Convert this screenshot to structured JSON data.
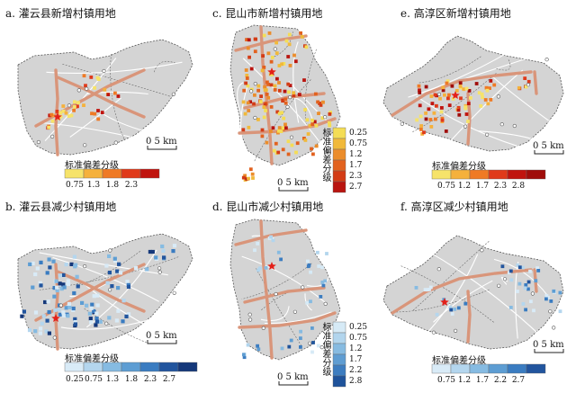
{
  "panels": {
    "a": {
      "title": "a. 灌云县新增村镇用地",
      "scale": "0  5 km",
      "legend_title": "标准偏差分级",
      "ticks": [
        "0.75",
        "1.3",
        "1.8",
        "2.3"
      ],
      "colors": [
        "#f6e36a",
        "#f5b13c",
        "#ef7a25",
        "#e03a1a",
        "#c0140e"
      ]
    },
    "b": {
      "title": "b. 灌云县减少村镇用地",
      "scale": "0  5 km",
      "legend_title": "标准偏差分级",
      "ticks": [
        "0.25",
        "0.75",
        "1.3",
        "1.8",
        "2.3",
        "2.7"
      ],
      "colors": [
        "#d9ebf7",
        "#b4d6ee",
        "#86bbe2",
        "#5d9dd3",
        "#3a7cc1",
        "#22559e",
        "#15387a"
      ]
    },
    "c": {
      "title": "c. 昆山市新增村镇用地",
      "scale": "0  5 km",
      "legend_title": "标准偏差分级",
      "ticks": [
        "0.25",
        "0.75",
        "1.2",
        "1.7",
        "2.3",
        "2.7"
      ],
      "colors": [
        "#f4dd55",
        "#f1b93a",
        "#eb8d2b",
        "#e2621f",
        "#d33c16",
        "#b91510"
      ]
    },
    "d": {
      "title": "d. 昆山市减少村镇用地",
      "scale": "0  5 km",
      "legend_title": "标准偏差分级",
      "ticks": [
        "0.25",
        "0.75",
        "1.2",
        "1.7",
        "2.2",
        "2.8"
      ],
      "colors": [
        "#d6eaf6",
        "#b2d5ed",
        "#87bbe1",
        "#5f9dd2",
        "#3d7dc0",
        "#1f539b"
      ]
    },
    "e": {
      "title": "e. 高淳区新增村镇用地",
      "scale": "0  5 km",
      "legend_title": "标准偏差分级",
      "ticks": [
        "0.75",
        "1.2",
        "1.7",
        "2.3",
        "2.8"
      ],
      "colors": [
        "#f6e36a",
        "#f5b13c",
        "#ef7a25",
        "#e03a1a",
        "#c0140e",
        "#a00d0a"
      ]
    },
    "f": {
      "title": "f. 高淳区减少村镇用地",
      "scale": "0  5 km",
      "legend_title": "标准偏差分级",
      "ticks": [
        "0.75",
        "1.2",
        "1.7",
        "2.2",
        "2.7"
      ],
      "colors": [
        "#d9ebf7",
        "#b4d6ee",
        "#86bbe2",
        "#5d9dd3",
        "#3a7cc1",
        "#22559e"
      ]
    }
  },
  "map_colors": {
    "land": "#d4d4d4",
    "road_major": "#d9957a",
    "road_minor": "#ffffff",
    "boundary": "#555555",
    "star": "#e32019"
  }
}
